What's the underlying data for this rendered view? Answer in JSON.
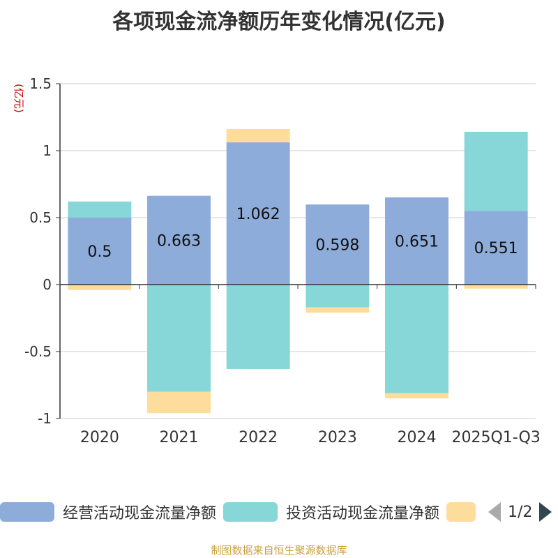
{
  "title": "各项现金流净额历年变化情况(亿元)",
  "y_unit": "(亿元)",
  "source": "制图数据来自恒生聚源数据库",
  "legend": {
    "items": [
      {
        "name": "经营活动现金流量净额",
        "color": "#8eacd9"
      },
      {
        "name": "投资活动现金流量净额",
        "color": "#87d6d8"
      },
      {
        "name": "",
        "color": "#fedc9c"
      }
    ],
    "page": "1/2"
  },
  "chart_data": {
    "type": "bar",
    "stacked": true,
    "title": "各项现金流净额历年变化情况(亿元)",
    "ylabel": "(亿元)",
    "xlabel": "",
    "ylim": [
      -1,
      1.5
    ],
    "yticks": [
      -1,
      -0.5,
      0,
      0.5,
      1,
      1.5
    ],
    "ytick_labels": [
      "-1",
      "-0.5",
      "0",
      "0.5",
      "1",
      "1.5"
    ],
    "categories": [
      "2020",
      "2021",
      "2022",
      "2023",
      "2024",
      "2025Q1-Q3"
    ],
    "series": [
      {
        "name": "经营活动现金流量净额",
        "color": "#8eacd9",
        "values": [
          0.5,
          0.663,
          1.062,
          0.598,
          0.651,
          0.551
        ]
      },
      {
        "name": "投资活动现金流量净额",
        "color": "#87d6d8",
        "values": [
          0.12,
          -0.8,
          -0.63,
          -0.17,
          -0.81,
          0.59
        ]
      },
      {
        "name": "",
        "color": "#fedc9c",
        "values": [
          -0.04,
          -0.16,
          0.1,
          -0.04,
          -0.04,
          -0.03
        ]
      }
    ],
    "data_labels": [
      "0.5",
      "0.663",
      "1.062",
      "0.598",
      "0.651",
      "0.551"
    ]
  }
}
